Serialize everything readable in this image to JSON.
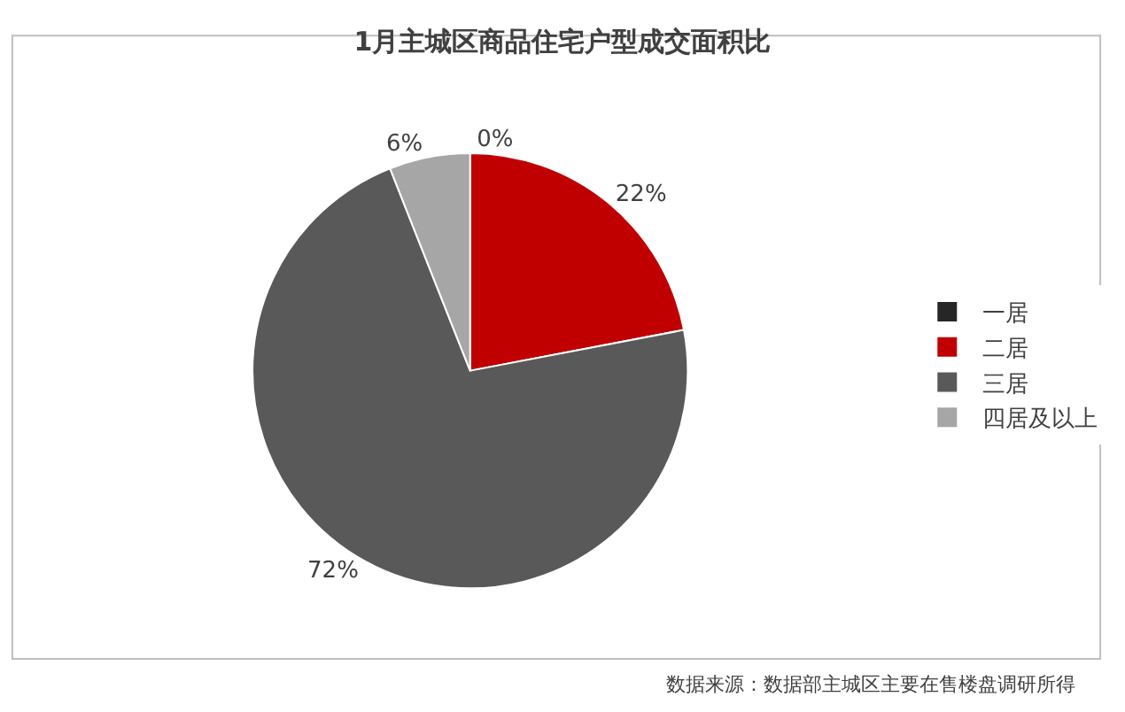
{
  "chart_data": {
    "type": "pie",
    "title": "1月主城区商品住宅户型成交面积比",
    "categories": [
      "一居",
      "二居",
      "三居",
      "四居及以上"
    ],
    "values": [
      0,
      22,
      72,
      6
    ],
    "value_labels": [
      "0%",
      "22%",
      "72%",
      "6%"
    ],
    "colors": [
      "#262626",
      "#c00000",
      "#595959",
      "#a6a6a6"
    ],
    "legend": "right",
    "annotations": [
      "数据来源：数据部主城区主要在售楼盘调研所得"
    ]
  }
}
